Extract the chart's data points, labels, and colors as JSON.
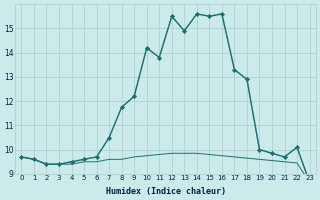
{
  "xlabel": "Humidex (Indice chaleur)",
  "x": [
    0,
    1,
    2,
    3,
    4,
    5,
    6,
    7,
    8,
    9,
    10,
    11,
    12,
    13,
    14,
    15,
    16,
    17,
    18,
    19,
    20,
    21,
    22,
    23
  ],
  "line_flat": [
    9.7,
    9.6,
    9.4,
    9.4,
    9.4,
    9.5,
    9.5,
    9.6,
    9.6,
    9.7,
    9.75,
    9.8,
    9.85,
    9.85,
    9.85,
    9.8,
    9.75,
    9.7,
    9.65,
    9.6,
    9.55,
    9.5,
    9.45,
    8.65
  ],
  "line_dotted": [
    9.7,
    9.6,
    9.4,
    9.4,
    9.5,
    9.6,
    9.7,
    10.5,
    11.75,
    12.2,
    14.2,
    13.8,
    15.5,
    14.9,
    15.6,
    15.5,
    15.6,
    13.3,
    12.9,
    10.0,
    9.85,
    9.7,
    10.1,
    8.65
  ],
  "line_solid": [
    9.7,
    9.6,
    9.4,
    9.4,
    9.5,
    9.6,
    9.7,
    10.5,
    11.75,
    12.2,
    14.2,
    13.8,
    15.5,
    14.9,
    15.6,
    15.5,
    15.6,
    13.3,
    12.9,
    10.0,
    9.85,
    9.7,
    10.1,
    8.65
  ],
  "bg_color": "#cceaea",
  "grid_color": "#aacccc",
  "line_color": "#1a7070",
  "ylim": [
    9.0,
    16.0
  ],
  "yticks": [
    9,
    10,
    11,
    12,
    13,
    14,
    15
  ],
  "xlim_min": -0.5,
  "xlim_max": 23.5
}
